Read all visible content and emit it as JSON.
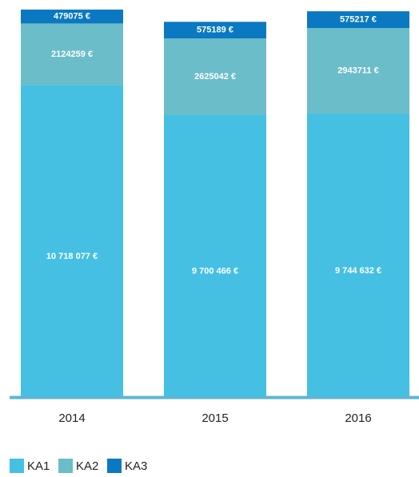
{
  "chart_data": {
    "type": "stacked_bar",
    "categories": [
      "2014",
      "2015",
      "2016"
    ],
    "series": [
      {
        "name": "KA1",
        "color": "#45c0e3",
        "values": [
          10718077,
          9700466,
          9744632
        ],
        "value_labels": [
          "10 718 077 €",
          "9 700 466 €",
          "9 744 632 €"
        ]
      },
      {
        "name": "KA2",
        "color": "#6bbdc9",
        "values": [
          2124259,
          2625042,
          2943711
        ],
        "value_labels": [
          "2124259 €",
          "2625042 €",
          "2943711 €"
        ]
      },
      {
        "name": "KA3",
        "color": "#0a79c1",
        "values": [
          479075,
          575189,
          575217
        ],
        "value_labels": [
          "479075 €",
          "575189 €",
          "575217 €"
        ]
      }
    ],
    "legend": "bottom-left"
  }
}
